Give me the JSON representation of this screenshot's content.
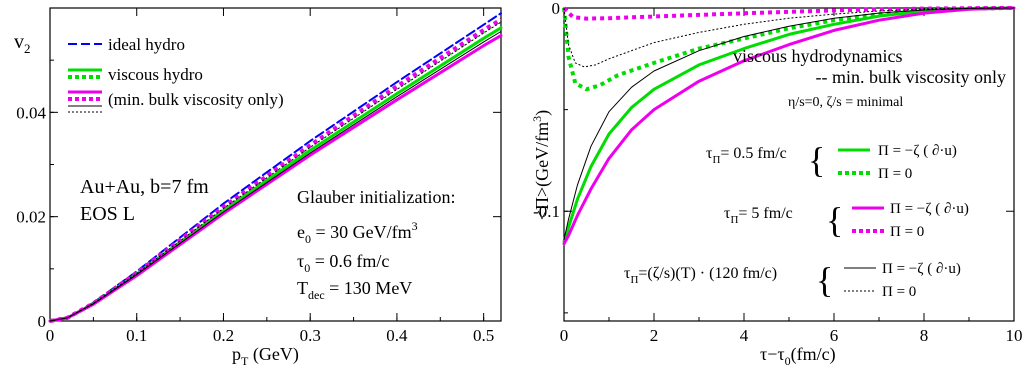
{
  "chart_data": [
    {
      "type": "line",
      "title": "",
      "xlabel": "p",
      "xlabel_sub": "T",
      "xlabel_unit": " (GeV)",
      "ylabel": "v",
      "ylabel_sub": "2",
      "xlim": [
        0,
        0.52
      ],
      "ylim": [
        0,
        0.06
      ],
      "xticks": [
        0,
        0.1,
        0.2,
        0.3,
        0.4,
        0.5
      ],
      "xtick_labels": [
        "0",
        "0.1",
        "0.2",
        "0.3",
        "0.4",
        "0.5"
      ],
      "yticks": [
        0,
        0.02,
        0.04
      ],
      "ytick_labels": [
        "0",
        "0.02",
        "0.04"
      ],
      "legend": {
        "placement": "top-left",
        "entries": [
          "ideal hydro",
          "viscous hydro",
          "(min. bulk viscosity only)"
        ]
      },
      "annotations": {
        "system": "Au+Au, b=7 fm",
        "eos": "EOS L",
        "init_title": "Glauber initialization:",
        "e0": "e",
        "e0_sub": "0",
        "e0_val": " = 30 GeV/fm",
        "e0_sup": "3",
        "tau0": "τ",
        "tau0_sub": "0",
        "tau0_val": " = 0.6 fm/c",
        "tdec": "T",
        "tdec_sub": "dec",
        "tdec_val": " = 130 MeV"
      },
      "series": [
        {
          "key": "ideal",
          "color": "#0000ff",
          "dash": "dashed",
          "x": [
            0,
            0.02,
            0.05,
            0.1,
            0.2,
            0.3,
            0.4,
            0.5,
            0.52
          ],
          "y": [
            0,
            0.0006,
            0.0035,
            0.0095,
            0.0225,
            0.0345,
            0.0458,
            0.0568,
            0.059
          ]
        },
        {
          "key": "visc_green_solid",
          "color": "#00dd00",
          "dash": "solid",
          "x": [
            0,
            0.02,
            0.05,
            0.1,
            0.2,
            0.3,
            0.4,
            0.5,
            0.52
          ],
          "y": [
            0,
            0.0006,
            0.0033,
            0.009,
            0.0212,
            0.0327,
            0.0436,
            0.0542,
            0.0562
          ]
        },
        {
          "key": "visc_green_dot",
          "color": "#00dd00",
          "dash": "dotted",
          "x": [
            0,
            0.02,
            0.05,
            0.1,
            0.2,
            0.3,
            0.4,
            0.5,
            0.52
          ],
          "y": [
            0,
            0.0006,
            0.0034,
            0.0092,
            0.0218,
            0.0336,
            0.0448,
            0.0556,
            0.0577
          ]
        },
        {
          "key": "visc_magenta_solid",
          "color": "#ee00ee",
          "dash": "solid",
          "x": [
            0,
            0.02,
            0.05,
            0.1,
            0.2,
            0.3,
            0.4,
            0.5,
            0.52
          ],
          "y": [
            0,
            0.0006,
            0.0032,
            0.0087,
            0.0206,
            0.0318,
            0.0424,
            0.0528,
            0.0547
          ]
        },
        {
          "key": "visc_magenta_dot",
          "color": "#ee00ee",
          "dash": "dotted",
          "x": [
            0,
            0.02,
            0.05,
            0.1,
            0.2,
            0.3,
            0.4,
            0.5,
            0.52
          ],
          "y": [
            0,
            0.0006,
            0.0034,
            0.0092,
            0.0219,
            0.0337,
            0.045,
            0.0558,
            0.0578
          ]
        },
        {
          "key": "visc_black_solid",
          "color": "#000000",
          "dash": "solid",
          "x": [
            0,
            0.02,
            0.05,
            0.1,
            0.2,
            0.3,
            0.4,
            0.5,
            0.52
          ],
          "y": [
            0,
            0.0006,
            0.0033,
            0.0089,
            0.0209,
            0.0322,
            0.043,
            0.0535,
            0.0555
          ]
        },
        {
          "key": "visc_black_dot",
          "color": "#000000",
          "dash": "dotted",
          "x": [
            0,
            0.02,
            0.05,
            0.1,
            0.2,
            0.3,
            0.4,
            0.5,
            0.52
          ],
          "y": [
            0,
            0.0006,
            0.0034,
            0.0091,
            0.0216,
            0.0333,
            0.0444,
            0.0552,
            0.0573
          ]
        }
      ]
    },
    {
      "type": "line",
      "title": "",
      "xlabel": "τ−τ",
      "xlabel_sub": "0",
      "xlabel_unit": "(fm/c)",
      "ylabel": "<Π>(GeV/fm",
      "ylabel_sup": "3",
      "ylabel_end": ")",
      "xlim": [
        0,
        10
      ],
      "ylim": [
        -0.154,
        0
      ],
      "xticks": [
        0,
        2,
        4,
        6,
        8,
        10
      ],
      "xtick_labels": [
        "0",
        "2",
        "4",
        "6",
        "8",
        "10"
      ],
      "yticks": [
        0,
        -0.1
      ],
      "ytick_labels": [
        "0",
        "-0.1"
      ],
      "annotations": {
        "heading1": "viscous hydrodynamics",
        "heading2": "-- min. bulk viscosity only",
        "params": "η/s=0,    ζ/s = minimal",
        "tau_a": "τ",
        "tau_a_sub": "Π",
        "tau_a_val": "= 0.5 fm/c",
        "tau_b": "τ",
        "tau_b_sub": "Π",
        "tau_b_val": "= 5 fm/c",
        "tau_c": "τ",
        "tau_c_sub": "Π",
        "tau_c_val": "=(ζ/s)(T) · (120 fm/c)",
        "brace": "{",
        "eq_ns": "Π = −ζ ( ∂·u)",
        "eq_zero": "Π = 0"
      },
      "series": [
        {
          "key": "tau05_ns",
          "color": "#00dd00",
          "dash": "solid",
          "x": [
            0,
            0.1,
            0.3,
            0.6,
            1.0,
            1.5,
            2,
            3,
            4,
            5,
            6,
            7,
            8,
            9,
            10
          ],
          "y": [
            -0.115,
            -0.108,
            -0.094,
            -0.078,
            -0.062,
            -0.049,
            -0.04,
            -0.028,
            -0.02,
            -0.013,
            -0.008,
            -0.004,
            -0.0015,
            -0.0003,
            0
          ]
        },
        {
          "key": "tau05_zero",
          "color": "#00dd00",
          "dash": "dotted",
          "x": [
            0,
            0.1,
            0.25,
            0.5,
            0.8,
            1.2,
            2,
            3,
            4,
            5,
            6,
            7,
            8,
            9,
            10
          ],
          "y": [
            0,
            -0.024,
            -0.037,
            -0.04,
            -0.038,
            -0.033,
            -0.027,
            -0.02,
            -0.015,
            -0.01,
            -0.006,
            -0.003,
            -0.0012,
            -0.0003,
            0
          ]
        },
        {
          "key": "tau5_ns",
          "color": "#ee00ee",
          "dash": "solid",
          "x": [
            0,
            0.1,
            0.3,
            0.6,
            1.0,
            1.5,
            2,
            3,
            4,
            5,
            6,
            7,
            8,
            9,
            10
          ],
          "y": [
            -0.116,
            -0.112,
            -0.102,
            -0.089,
            -0.074,
            -0.06,
            -0.05,
            -0.036,
            -0.026,
            -0.018,
            -0.011,
            -0.006,
            -0.0025,
            -0.0006,
            0
          ]
        },
        {
          "key": "tau5_zero",
          "color": "#ee00ee",
          "dash": "dotted",
          "x": [
            0,
            0.2,
            0.5,
            1,
            1.5,
            2,
            3,
            4,
            5,
            6,
            7,
            8,
            9,
            10
          ],
          "y": [
            0,
            -0.0045,
            -0.0052,
            -0.005,
            -0.0046,
            -0.0042,
            -0.0034,
            -0.0026,
            -0.0019,
            -0.0012,
            -0.0007,
            -0.0003,
            -0.0001,
            0
          ]
        },
        {
          "key": "tauT_ns",
          "color": "#000000",
          "dash": "solid",
          "x": [
            0,
            0.1,
            0.3,
            0.6,
            1.0,
            1.5,
            2,
            3,
            4,
            5,
            6,
            7,
            8,
            9,
            10
          ],
          "y": [
            -0.114,
            -0.104,
            -0.087,
            -0.068,
            -0.051,
            -0.039,
            -0.031,
            -0.021,
            -0.014,
            -0.009,
            -0.005,
            -0.0025,
            -0.001,
            -0.0002,
            0
          ]
        },
        {
          "key": "tauT_zero",
          "color": "#000000",
          "dash": "dotted",
          "x": [
            0,
            0.1,
            0.25,
            0.45,
            0.7,
            1.0,
            1.5,
            2,
            3,
            4,
            5,
            6,
            7,
            8,
            9,
            10
          ],
          "y": [
            0,
            -0.018,
            -0.027,
            -0.029,
            -0.028,
            -0.025,
            -0.021,
            -0.017,
            -0.012,
            -0.008,
            -0.005,
            -0.003,
            -0.0015,
            -0.0005,
            -0.0001,
            0
          ]
        }
      ]
    }
  ]
}
